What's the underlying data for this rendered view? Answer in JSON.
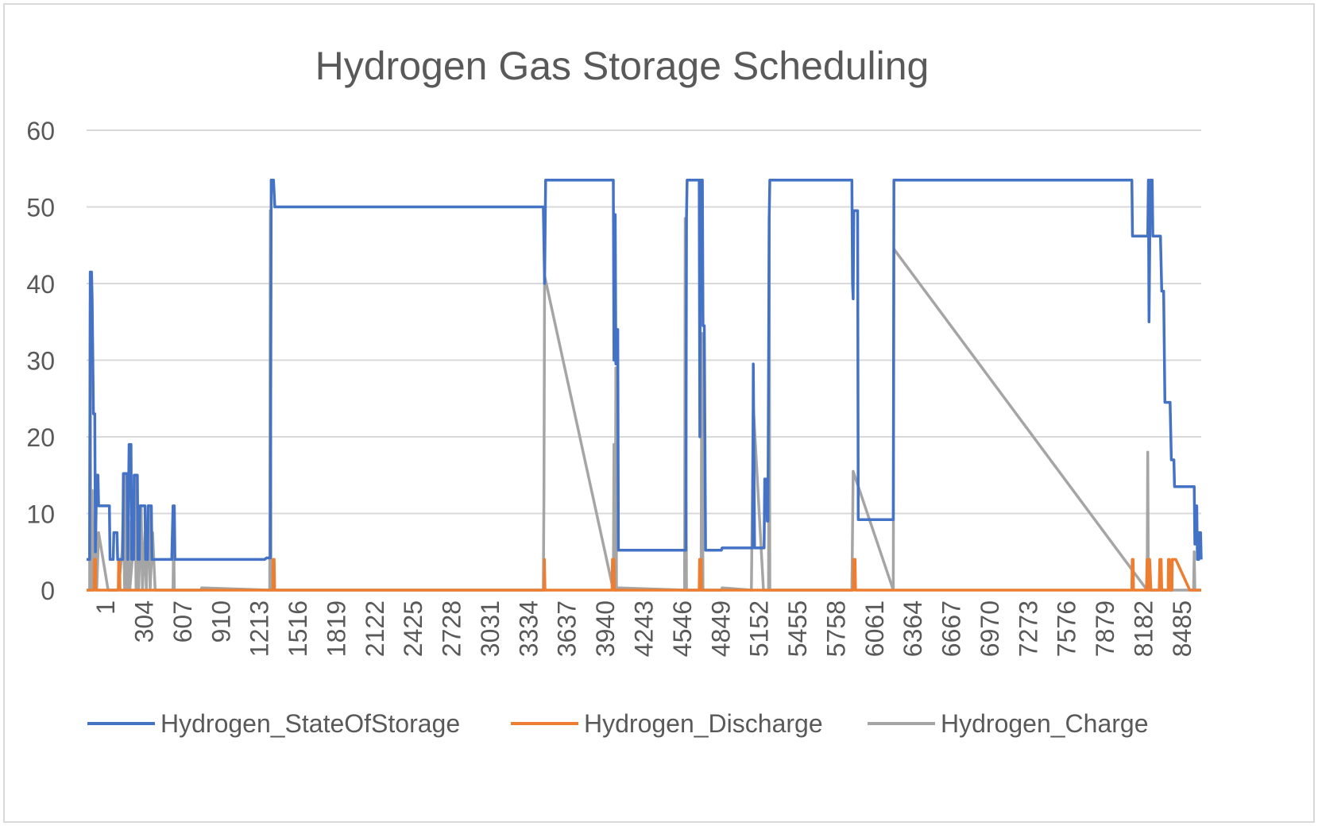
{
  "chart_data": {
    "type": "line",
    "title": "Hydrogen Gas Storage Scheduling",
    "xlabel": "",
    "ylabel": "",
    "xlim": [
      1,
      8760
    ],
    "ylim": [
      0,
      60
    ],
    "y_ticks": [
      0,
      10,
      20,
      30,
      40,
      50,
      60
    ],
    "x_tick_labels": [
      "1",
      "304",
      "607",
      "910",
      "1213",
      "1516",
      "1819",
      "2122",
      "2425",
      "2728",
      "3031",
      "3334",
      "3637",
      "3940",
      "4243",
      "4546",
      "4849",
      "5152",
      "5455",
      "5758",
      "6061",
      "6364",
      "6667",
      "6970",
      "7273",
      "7576",
      "7879",
      "8182",
      "8485"
    ],
    "grid": true,
    "legend_position": "bottom",
    "series": [
      {
        "name": "Hydrogen_StateOfStorage",
        "color": "#4472c4",
        "points": [
          [
            1,
            4
          ],
          [
            25,
            4
          ],
          [
            30,
            41.5
          ],
          [
            40,
            41.5
          ],
          [
            45,
            38
          ],
          [
            55,
            23
          ],
          [
            65,
            23
          ],
          [
            70,
            5
          ],
          [
            80,
            15
          ],
          [
            90,
            15
          ],
          [
            95,
            11
          ],
          [
            180,
            11
          ],
          [
            185,
            4
          ],
          [
            210,
            4
          ],
          [
            215,
            7.5
          ],
          [
            240,
            7.5
          ],
          [
            245,
            4
          ],
          [
            285,
            4
          ],
          [
            290,
            15.2
          ],
          [
            320,
            15.2
          ],
          [
            325,
            4
          ],
          [
            335,
            19
          ],
          [
            350,
            19
          ],
          [
            355,
            4
          ],
          [
            370,
            4
          ],
          [
            375,
            15
          ],
          [
            400,
            15
          ],
          [
            405,
            4
          ],
          [
            415,
            4
          ],
          [
            420,
            11
          ],
          [
            460,
            11
          ],
          [
            465,
            4
          ],
          [
            480,
            4
          ],
          [
            485,
            11
          ],
          [
            510,
            11
          ],
          [
            515,
            4
          ],
          [
            670,
            4
          ],
          [
            680,
            11
          ],
          [
            690,
            11
          ],
          [
            695,
            4
          ],
          [
            1400,
            4
          ],
          [
            1415,
            4.2
          ],
          [
            1445,
            4.2
          ],
          [
            1452,
            53.5
          ],
          [
            1470,
            53.5
          ],
          [
            1480,
            50
          ],
          [
            3590,
            50
          ],
          [
            3600,
            40
          ],
          [
            3608,
            53.5
          ],
          [
            4140,
            53.5
          ],
          [
            4145,
            30
          ],
          [
            4148,
            49
          ],
          [
            4155,
            49
          ],
          [
            4160,
            29.5
          ],
          [
            4165,
            29.5
          ],
          [
            4170,
            34
          ],
          [
            4175,
            34
          ],
          [
            4180,
            5.2
          ],
          [
            4710,
            5.2
          ],
          [
            4715,
            48.5
          ],
          [
            4720,
            53.5
          ],
          [
            4815,
            53.5
          ],
          [
            4820,
            20
          ],
          [
            4825,
            53.5
          ],
          [
            4840,
            53.5
          ],
          [
            4845,
            34.5
          ],
          [
            4855,
            34.5
          ],
          [
            4865,
            5.2
          ],
          [
            4990,
            5.2
          ],
          [
            4995,
            5.5
          ],
          [
            5235,
            5.5
          ],
          [
            5240,
            29.5
          ],
          [
            5250,
            5.5
          ],
          [
            5325,
            5.5
          ],
          [
            5330,
            14.5
          ],
          [
            5345,
            14.5
          ],
          [
            5350,
            9
          ],
          [
            5355,
            9
          ],
          [
            5365,
            48.5
          ],
          [
            5370,
            53.5
          ],
          [
            6015,
            53.5
          ],
          [
            6020,
            40
          ],
          [
            6025,
            38
          ],
          [
            6030,
            49.5
          ],
          [
            6060,
            49.5
          ],
          [
            6065,
            9.2
          ],
          [
            6340,
            9.2
          ],
          [
            6345,
            53.5
          ],
          [
            8215,
            53.5
          ],
          [
            8220,
            46.2
          ],
          [
            8340,
            46.2
          ],
          [
            8345,
            53.5
          ],
          [
            8350,
            35
          ],
          [
            8360,
            53.5
          ],
          [
            8375,
            53.5
          ],
          [
            8380,
            46.2
          ],
          [
            8440,
            46.2
          ],
          [
            8450,
            39
          ],
          [
            8465,
            39
          ],
          [
            8475,
            24.5
          ],
          [
            8515,
            24.5
          ],
          [
            8525,
            17
          ],
          [
            8545,
            17
          ],
          [
            8550,
            13.5
          ],
          [
            8705,
            13.5
          ],
          [
            8710,
            6
          ],
          [
            8715,
            11
          ],
          [
            8725,
            11
          ],
          [
            8730,
            4
          ],
          [
            8740,
            4
          ],
          [
            8745,
            7.5
          ],
          [
            8755,
            7.5
          ],
          [
            8760,
            4
          ]
        ]
      },
      {
        "name": "Hydrogen_Discharge",
        "color": "#ed7d31",
        "points": [
          [
            1,
            0
          ],
          [
            60,
            0
          ],
          [
            63,
            4
          ],
          [
            70,
            4
          ],
          [
            73,
            0
          ],
          [
            250,
            0
          ],
          [
            253,
            4
          ],
          [
            260,
            4
          ],
          [
            263,
            0
          ],
          [
            1465,
            0
          ],
          [
            1468,
            4
          ],
          [
            1475,
            4
          ],
          [
            1478,
            0
          ],
          [
            3595,
            0
          ],
          [
            3598,
            4
          ],
          [
            3603,
            0
          ],
          [
            4130,
            0
          ],
          [
            4133,
            4
          ],
          [
            4145,
            4
          ],
          [
            4148,
            0
          ],
          [
            4815,
            0
          ],
          [
            4818,
            4
          ],
          [
            4830,
            4
          ],
          [
            4833,
            0
          ],
          [
            6025,
            0
          ],
          [
            6028,
            4
          ],
          [
            6040,
            4
          ],
          [
            6043,
            0
          ],
          [
            8215,
            0
          ],
          [
            8218,
            4
          ],
          [
            8225,
            4
          ],
          [
            8228,
            0
          ],
          [
            8330,
            0
          ],
          [
            8335,
            4
          ],
          [
            8345,
            0
          ],
          [
            8355,
            4
          ],
          [
            8365,
            0
          ],
          [
            8430,
            0
          ],
          [
            8435,
            4
          ],
          [
            8445,
            4
          ],
          [
            8450,
            0
          ],
          [
            8500,
            0
          ],
          [
            8503,
            4
          ],
          [
            8510,
            4
          ],
          [
            8515,
            0
          ],
          [
            8530,
            0
          ],
          [
            8533,
            4
          ],
          [
            8560,
            4
          ],
          [
            8670,
            0
          ],
          [
            8760,
            0
          ]
        ]
      },
      {
        "name": "Hydrogen_Charge",
        "color": "#a5a5a5",
        "points": [
          [
            1,
            0
          ],
          [
            25,
            0
          ],
          [
            30,
            37.5
          ],
          [
            35,
            0
          ],
          [
            45,
            13
          ],
          [
            50,
            0
          ],
          [
            70,
            10
          ],
          [
            80,
            0
          ],
          [
            95,
            7.5
          ],
          [
            170,
            0
          ],
          [
            250,
            0
          ],
          [
            280,
            5
          ],
          [
            290,
            11
          ],
          [
            300,
            0
          ],
          [
            310,
            15
          ],
          [
            320,
            0
          ],
          [
            330,
            9
          ],
          [
            340,
            0
          ],
          [
            360,
            4
          ],
          [
            380,
            15
          ],
          [
            390,
            0
          ],
          [
            400,
            11
          ],
          [
            410,
            0
          ],
          [
            430,
            11
          ],
          [
            440,
            0
          ],
          [
            460,
            7.5
          ],
          [
            470,
            0
          ],
          [
            490,
            11
          ],
          [
            500,
            0
          ],
          [
            520,
            7.5
          ],
          [
            540,
            0
          ],
          [
            680,
            0
          ],
          [
            685,
            7.5
          ],
          [
            690,
            0
          ],
          [
            900,
            0
          ],
          [
            905,
            0.3
          ],
          [
            1440,
            0
          ],
          [
            1445,
            49.5
          ],
          [
            1450,
            0
          ],
          [
            3590,
            0
          ],
          [
            3595,
            13
          ],
          [
            3600,
            41
          ],
          [
            4140,
            0
          ],
          [
            4145,
            19
          ],
          [
            4150,
            0
          ],
          [
            4155,
            0
          ],
          [
            4160,
            29
          ],
          [
            4165,
            0
          ],
          [
            4170,
            0.3
          ],
          [
            4700,
            0
          ],
          [
            4705,
            48.5
          ],
          [
            4715,
            0
          ],
          [
            4830,
            0
          ],
          [
            4835,
            33.5
          ],
          [
            4845,
            0
          ],
          [
            4990,
            0
          ],
          [
            4995,
            0.3
          ],
          [
            5225,
            0
          ],
          [
            5240,
            24
          ],
          [
            5320,
            0
          ],
          [
            5360,
            0
          ],
          [
            5365,
            48.8
          ],
          [
            5370,
            0
          ],
          [
            6015,
            0
          ],
          [
            6025,
            15.5
          ],
          [
            6340,
            0
          ],
          [
            6345,
            44.5
          ],
          [
            8335,
            0
          ],
          [
            8340,
            18
          ],
          [
            8345,
            0
          ],
          [
            8700,
            0
          ],
          [
            8705,
            5
          ],
          [
            8710,
            0
          ],
          [
            8760,
            0
          ]
        ]
      }
    ]
  }
}
